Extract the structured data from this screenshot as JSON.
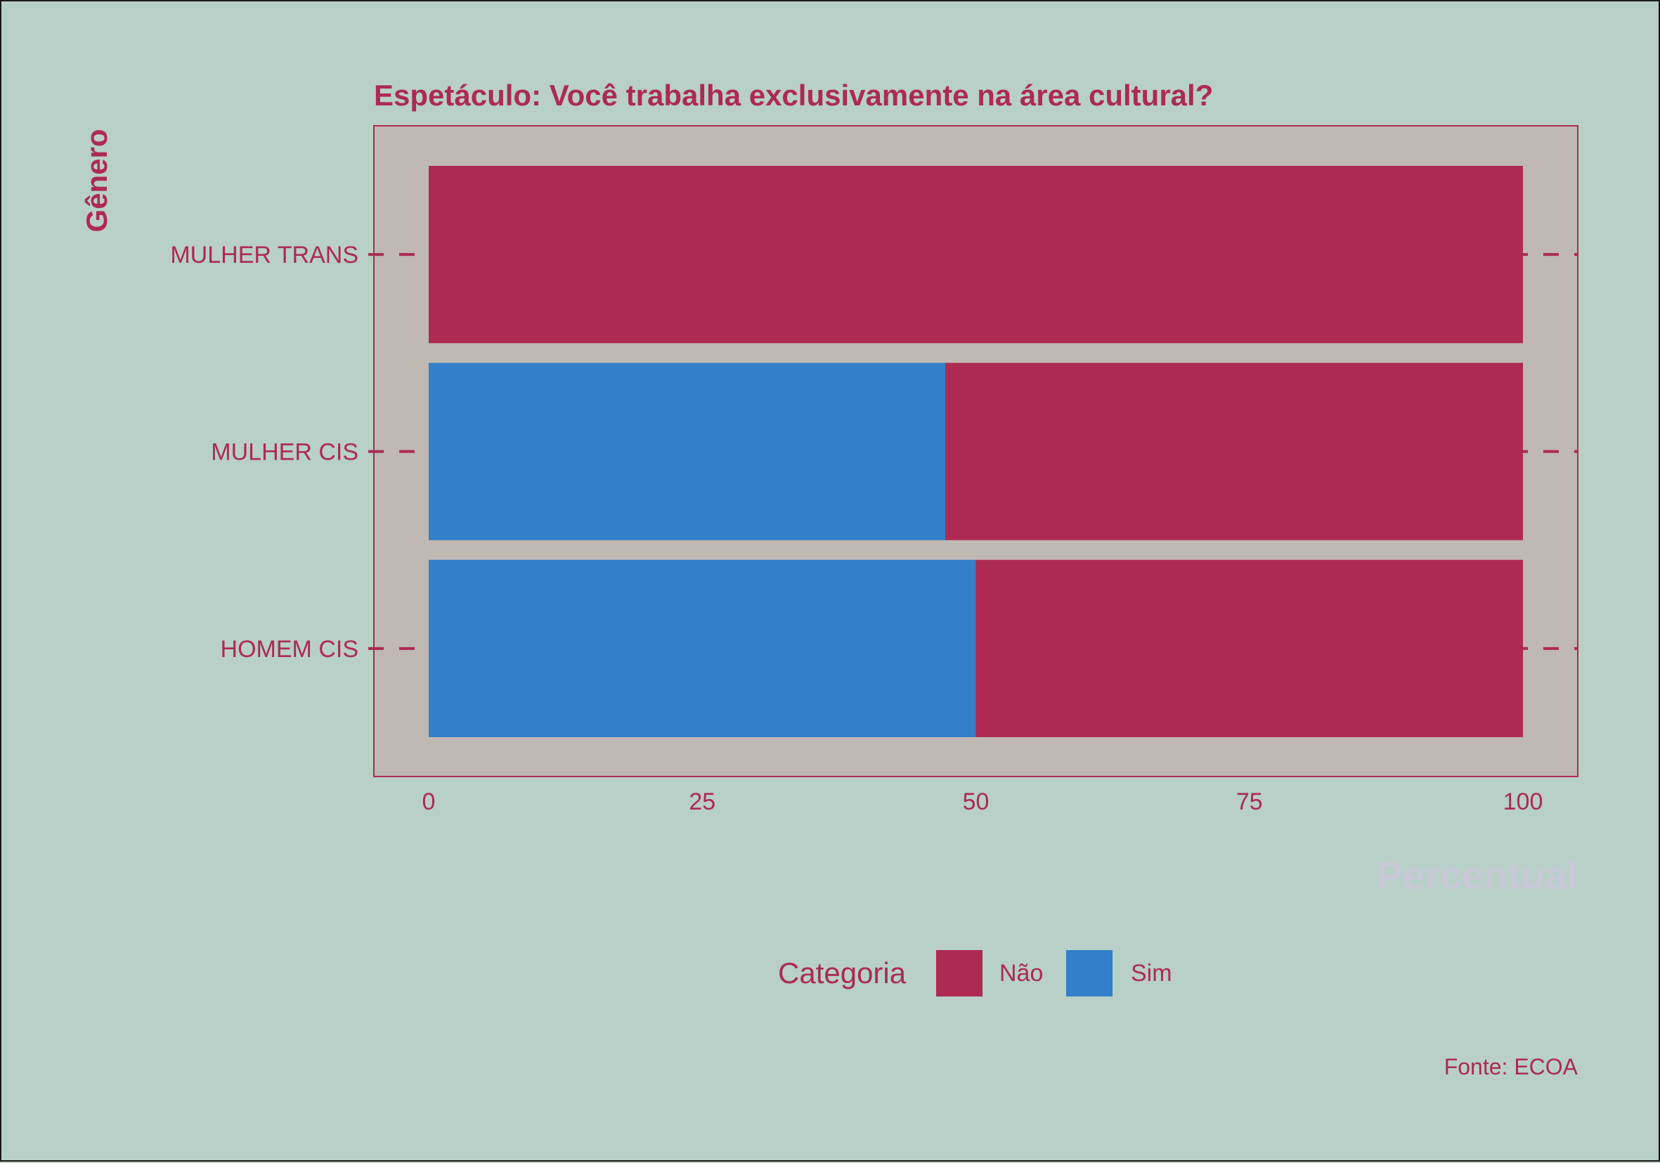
{
  "colors": {
    "background": "#b8d0c7",
    "panel": "#bfb8b3",
    "accent": "#ad2a53",
    "nao": "#ad2a53",
    "sim": "#337fca",
    "xtitle": "#c8c8d6"
  },
  "chart_data": {
    "type": "bar",
    "orientation": "horizontal",
    "stacked": true,
    "title": "Espetáculo: Você trabalha exclusivamente na área cultural?",
    "ylabel": "Gênero",
    "xlabel": "Percentual",
    "categories": [
      "HOMEM CIS",
      "MULHER CIS",
      "MULHER TRANS"
    ],
    "series": [
      {
        "name": "Sim",
        "values": [
          50,
          47.2,
          0
        ]
      },
      {
        "name": "Não",
        "values": [
          50,
          52.8,
          100
        ]
      }
    ],
    "xlim": [
      0,
      100
    ],
    "xticks": [
      "0",
      "25",
      "50",
      "75",
      "100"
    ],
    "legend": {
      "title": "Categoria",
      "labels": [
        "Não",
        "Sim"
      ],
      "position": "bottom"
    },
    "caption": "Fonte: ECOA",
    "grid": "dashed y-ticks outside bars"
  }
}
